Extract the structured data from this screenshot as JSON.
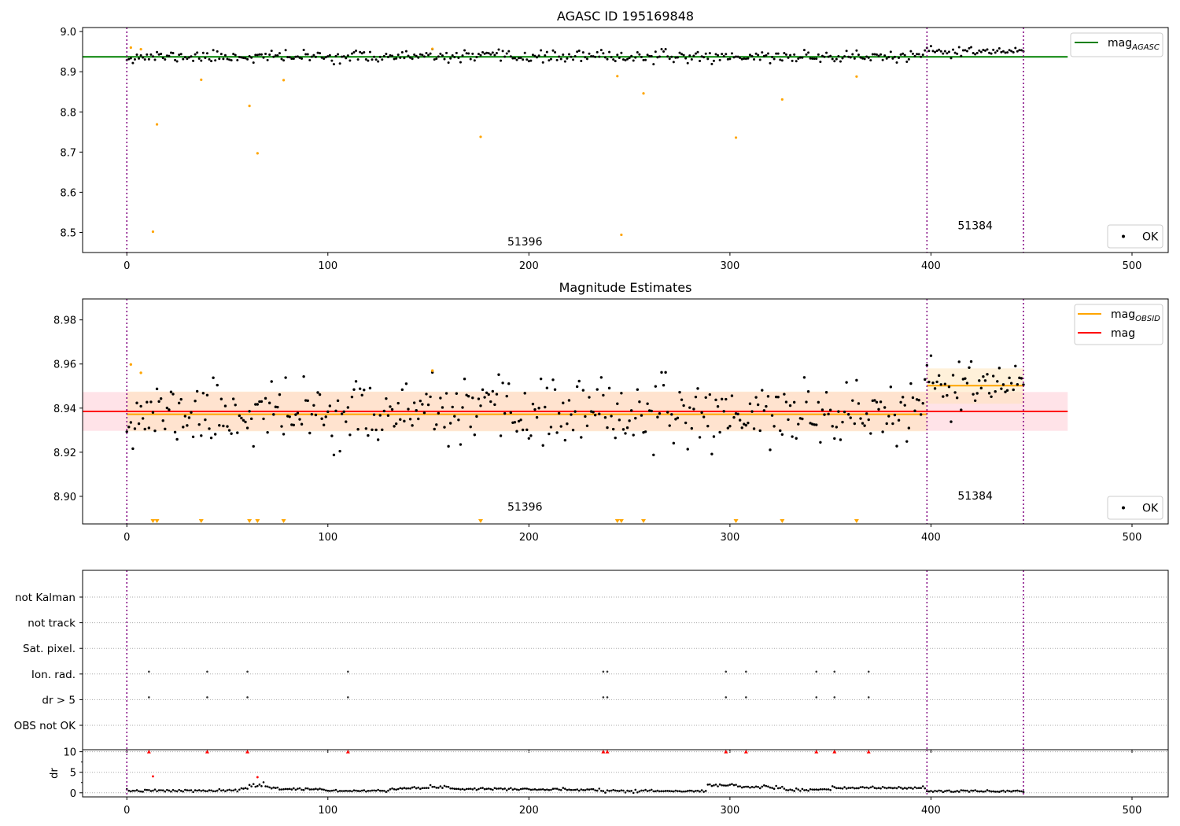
{
  "colors": {
    "good": "#000000",
    "outlier": "#ffa500",
    "agasc_line": "#008000",
    "mag_line": "#ff0000",
    "obsid_line": "#ffa500",
    "mag_band": "#ffc0cb",
    "obsid_band": "#ffe4b5",
    "obs_boundary": "#800080",
    "flag_marker": "#ff0000"
  },
  "chart_data": [
    {
      "type": "scatter",
      "title": "AGASC ID 195169848",
      "xlim": [
        -22,
        518
      ],
      "ylim": [
        8.45,
        9.01
      ],
      "xticks": [
        0,
        100,
        200,
        300,
        400,
        500
      ],
      "yticks": [
        8.5,
        8.6,
        8.7,
        8.8,
        8.9,
        9.0
      ],
      "ytick_labels": [
        "8.5",
        "8.6",
        "8.7",
        "8.8",
        "8.9",
        "9.0"
      ],
      "obs_boundaries": [
        0,
        398,
        446
      ],
      "obs_labels": [
        {
          "text": "51396",
          "x": 198,
          "y": 8.468
        },
        {
          "text": "51384",
          "x": 422,
          "y": 8.508
        }
      ],
      "lines": [
        {
          "name": "mag_AGASC",
          "name_main": "mag",
          "name_sub": "AGASC",
          "y": 8.937,
          "x_range": [
            -22,
            468
          ]
        }
      ],
      "legend": [
        "mag_AGASC",
        "OK"
      ],
      "legend_position": [
        "top-right",
        "bottom-right"
      ],
      "series": [
        {
          "name": "OK",
          "role": "good",
          "seed": 11,
          "segments": [
            {
              "x0": 0,
              "x1": 397,
              "mean": 8.9375,
              "sd": 0.0072
            },
            {
              "x0": 398,
              "x1": 446,
              "mean": 8.95,
              "sd": 0.0065
            }
          ]
        },
        {
          "role": "outlier",
          "x": [
            2,
            7,
            13,
            15,
            37,
            61,
            65,
            78,
            152,
            176,
            244,
            246,
            257,
            303,
            326,
            363
          ],
          "y": [
            8.96,
            8.956,
            8.502,
            8.769,
            8.88,
            8.815,
            8.697,
            8.879,
            8.957,
            8.738,
            8.889,
            8.494,
            8.846,
            8.736,
            8.831,
            8.888
          ]
        }
      ]
    },
    {
      "type": "scatter",
      "title": "Magnitude Estimates",
      "xlim": [
        -22,
        518
      ],
      "ylim": [
        8.8875,
        8.9895
      ],
      "xticks": [
        0,
        100,
        200,
        300,
        400,
        500
      ],
      "yticks": [
        8.9,
        8.92,
        8.94,
        8.96,
        8.98
      ],
      "ytick_labels": [
        "8.90",
        "8.92",
        "8.94",
        "8.96",
        "8.98"
      ],
      "obs_boundaries": [
        0,
        398,
        446
      ],
      "obs_labels": [
        {
          "text": "51396",
          "x": 198,
          "y": 8.8935
        },
        {
          "text": "51384",
          "x": 422,
          "y": 8.8985
        }
      ],
      "bands": [
        {
          "role": "mag",
          "y0": 8.9297,
          "y1": 8.9473,
          "x_range": [
            -22,
            468
          ]
        },
        {
          "role": "obsid",
          "y0": 8.9295,
          "y1": 8.9475,
          "x_range": [
            0,
            398
          ]
        },
        {
          "role": "obsid",
          "y0": 8.942,
          "y1": 8.958,
          "x_range": [
            398,
            446
          ]
        }
      ],
      "lines": [
        {
          "name": "mag_OBSID",
          "name_main": "mag",
          "name_sub": "OBSID",
          "role": "obsid",
          "segments": [
            {
              "x_range": [
                0,
                398
              ],
              "y": 8.9372
            },
            {
              "x_range": [
                398,
                446
              ],
              "y": 8.9502
            }
          ]
        },
        {
          "name": "mag",
          "role": "mag",
          "y": 8.9385,
          "x_range": [
            -22,
            468
          ]
        }
      ],
      "legend": [
        "mag_OBSID",
        "mag",
        "OK"
      ],
      "legend_position": [
        "top-right",
        "bottom-right"
      ],
      "series": [
        {
          "name": "OK",
          "role": "good",
          "seed": 11,
          "segments": [
            {
              "x0": 0,
              "x1": 397,
              "mean": 8.9375,
              "sd": 0.0072
            },
            {
              "x0": 398,
              "x1": 446,
              "mean": 8.95,
              "sd": 0.0065
            }
          ]
        },
        {
          "role": "outlier",
          "x": [
            2,
            7,
            152
          ],
          "y": [
            8.9598,
            8.956,
            8.957
          ]
        },
        {
          "role": "off-scale-low",
          "x": [
            13,
            15,
            37,
            61,
            65,
            78,
            176,
            244,
            246,
            257,
            303,
            326,
            363
          ]
        }
      ]
    },
    {
      "type": "scatter",
      "title": "",
      "xlim": [
        -22,
        518
      ],
      "xticks": [
        0,
        100,
        200,
        300,
        400,
        500
      ],
      "obs_boundaries": [
        0,
        398,
        446
      ],
      "categories": [
        "not Kalman",
        "not track",
        "Sat. pixel.",
        "Ion. rad.",
        "dr > 5",
        "OBS not OK"
      ],
      "flag_points": {
        "Ion. rad.": [
          11,
          40,
          60,
          110,
          237,
          239,
          298,
          308,
          343,
          352,
          369
        ],
        "dr > 5": [
          11,
          40,
          60,
          110,
          237,
          239,
          298,
          308,
          343,
          352,
          369
        ]
      }
    },
    {
      "type": "scatter",
      "title": "",
      "ylabel": "dr",
      "xlim": [
        -22,
        518
      ],
      "ylim": [
        -1,
        10.5
      ],
      "xticks": [
        0,
        100,
        200,
        300,
        400,
        500
      ],
      "xtick_labels": [
        "0",
        "100",
        "200",
        "300",
        "400",
        "500"
      ],
      "yticks": [
        0,
        5,
        10
      ],
      "ytick_labels": [
        "0",
        "5",
        "10"
      ],
      "obs_boundaries": [
        0,
        398,
        446
      ],
      "flag_markers_at_10": [
        11,
        40,
        60,
        110,
        237,
        239,
        298,
        308,
        343,
        352,
        369
      ],
      "red_points": {
        "x": [
          13,
          65
        ],
        "y": [
          4.0,
          3.8
        ]
      },
      "series": [
        {
          "name": "dr",
          "role": "good",
          "seed": 7,
          "segments": [
            {
              "x0": 0,
              "x1": 55,
              "mean": 0.5,
              "sd": 0.15
            },
            {
              "x0": 56,
              "x1": 60,
              "mean": 1.0,
              "sd": 0.15
            },
            {
              "x0": 61,
              "x1": 68,
              "mean": 2.0,
              "sd": 0.3
            },
            {
              "x0": 69,
              "x1": 75,
              "mean": 1.3,
              "sd": 0.15
            },
            {
              "x0": 76,
              "x1": 98,
              "mean": 0.9,
              "sd": 0.15
            },
            {
              "x0": 99,
              "x1": 130,
              "mean": 0.5,
              "sd": 0.12
            },
            {
              "x0": 131,
              "x1": 150,
              "mean": 1.1,
              "sd": 0.15
            },
            {
              "x0": 151,
              "x1": 160,
              "mean": 1.5,
              "sd": 0.15
            },
            {
              "x0": 161,
              "x1": 200,
              "mean": 1.0,
              "sd": 0.15
            },
            {
              "x0": 201,
              "x1": 236,
              "mean": 0.8,
              "sd": 0.15
            },
            {
              "x0": 237,
              "x1": 262,
              "mean": 0.5,
              "sd": 0.2
            },
            {
              "x0": 263,
              "x1": 288,
              "mean": 0.4,
              "sd": 0.1
            },
            {
              "x0": 289,
              "x1": 303,
              "mean": 1.9,
              "sd": 0.15
            },
            {
              "x0": 304,
              "x1": 326,
              "mean": 1.4,
              "sd": 0.2
            },
            {
              "x0": 327,
              "x1": 350,
              "mean": 0.7,
              "sd": 0.15
            },
            {
              "x0": 351,
              "x1": 397,
              "mean": 1.2,
              "sd": 0.15
            },
            {
              "x0": 398,
              "x1": 446,
              "mean": 0.4,
              "sd": 0.12
            }
          ]
        }
      ]
    }
  ]
}
